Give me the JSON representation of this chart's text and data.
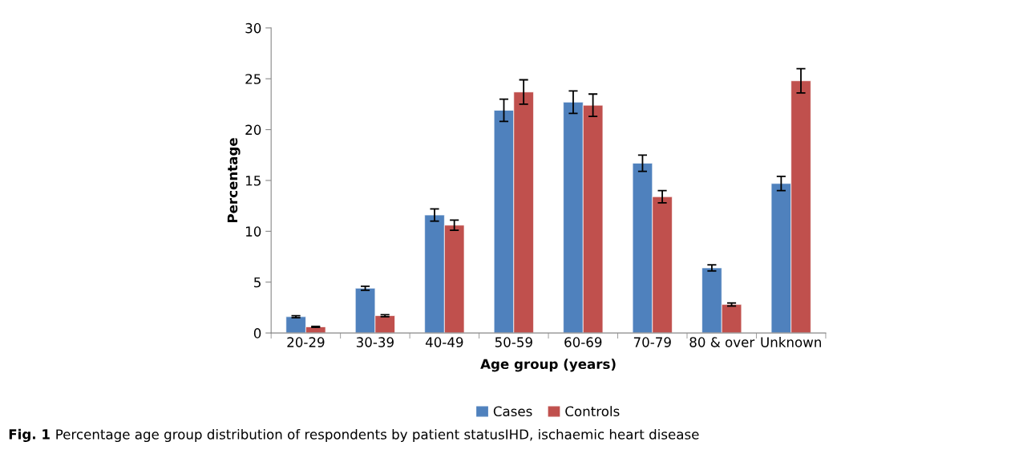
{
  "chart_data": {
    "type": "bar",
    "xlabel": "Age group (years)",
    "ylabel": "Percentage",
    "categories": [
      "20-29",
      "30-39",
      "40-49",
      "50-59",
      "60-69",
      "70-79",
      "80 & over",
      "Unknown"
    ],
    "series": [
      {
        "name": "Cases",
        "color": "#4f81bd",
        "values": [
          1.6,
          4.4,
          11.6,
          21.9,
          22.7,
          16.7,
          6.4,
          14.7
        ],
        "errors": [
          0.1,
          0.2,
          0.6,
          1.1,
          1.1,
          0.8,
          0.3,
          0.7
        ]
      },
      {
        "name": "Controls",
        "color": "#c0504d",
        "values": [
          0.6,
          1.7,
          10.6,
          23.7,
          22.4,
          13.4,
          2.8,
          24.8
        ],
        "errors": [
          0.05,
          0.1,
          0.5,
          1.2,
          1.1,
          0.6,
          0.15,
          1.2
        ]
      }
    ],
    "ylim": [
      0,
      30
    ],
    "yticks": [
      0,
      5,
      10,
      15,
      20,
      25,
      30
    ],
    "grid": false,
    "legend": "bottom",
    "annotations": [
      "Fig. 1",
      "Percentage age group distribution of respondents by patient statusIHD, ischaemic heart disease"
    ]
  }
}
